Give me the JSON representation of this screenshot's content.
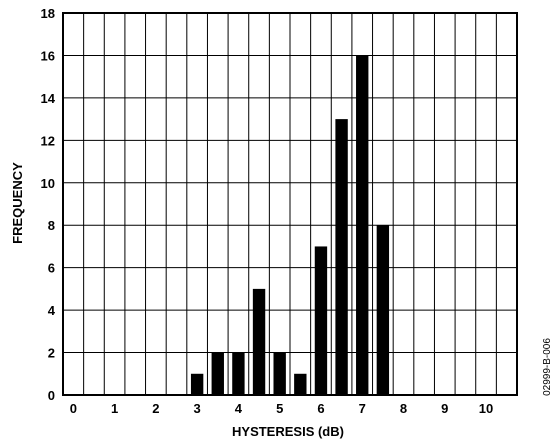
{
  "chart_data": {
    "type": "bar",
    "xlabel": "HYSTERESIS (dB)",
    "ylabel": "FREQUENCY",
    "xlim": [
      -0.25,
      10.75
    ],
    "ylim": [
      0,
      18
    ],
    "x_ticks": [
      0,
      1,
      2,
      3,
      4,
      5,
      6,
      7,
      8,
      9,
      10
    ],
    "y_ticks": [
      0,
      2,
      4,
      6,
      8,
      10,
      12,
      14,
      16,
      18
    ],
    "x_grid": [
      -0.25,
      0.25,
      0.75,
      1.25,
      1.75,
      2.25,
      2.75,
      3.25,
      3.75,
      4.25,
      4.75,
      5.25,
      5.75,
      6.25,
      6.75,
      7.25,
      7.75,
      8.25,
      8.75,
      9.25,
      9.75,
      10.25,
      10.75
    ],
    "grid": true,
    "bar_width": 0.3,
    "bars": [
      {
        "x": 3.0,
        "value": 1
      },
      {
        "x": 3.5,
        "value": 2
      },
      {
        "x": 4.0,
        "value": 2
      },
      {
        "x": 4.5,
        "value": 5
      },
      {
        "x": 5.0,
        "value": 2
      },
      {
        "x": 5.5,
        "value": 1
      },
      {
        "x": 6.0,
        "value": 7
      },
      {
        "x": 6.5,
        "value": 13
      },
      {
        "x": 7.0,
        "value": 16
      },
      {
        "x": 7.5,
        "value": 8
      }
    ],
    "bar_color": "#000000",
    "grid_color": "#000000"
  },
  "figure_id": "02999-B-006"
}
